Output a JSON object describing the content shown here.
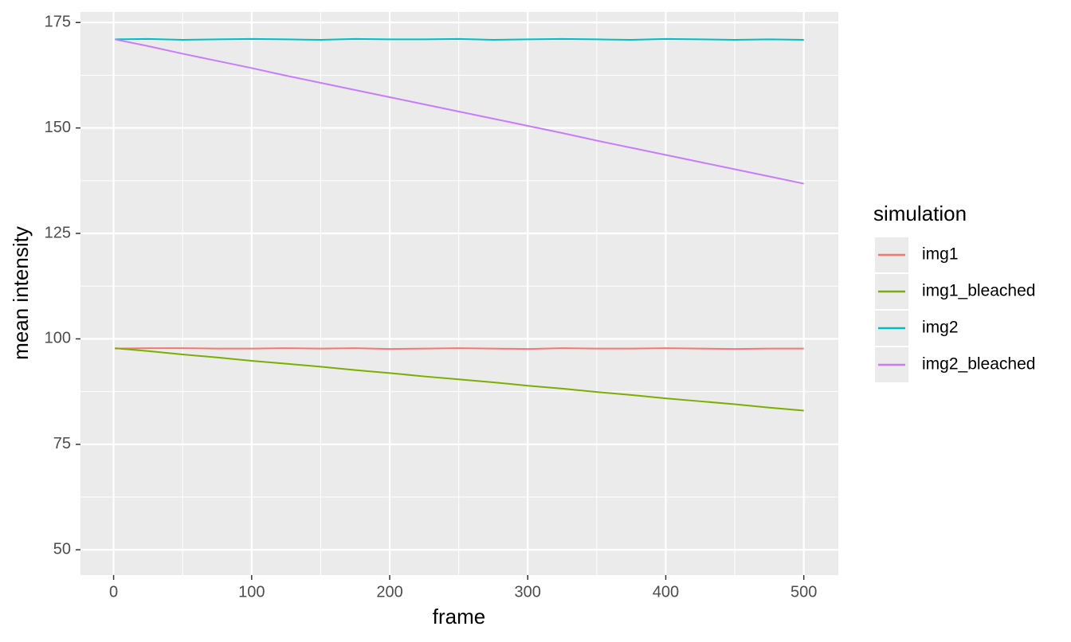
{
  "chart_data": {
    "type": "line",
    "x_label": "frame",
    "y_label": "mean intensity",
    "legend_title": "simulation",
    "x": [
      1,
      25,
      50,
      75,
      100,
      125,
      150,
      175,
      200,
      225,
      250,
      275,
      300,
      325,
      350,
      375,
      400,
      425,
      450,
      475,
      500
    ],
    "series": [
      {
        "name": "img1",
        "color": "#F8766D",
        "values": [
          97.7,
          97.8,
          97.8,
          97.7,
          97.7,
          97.8,
          97.7,
          97.8,
          97.6,
          97.7,
          97.8,
          97.7,
          97.6,
          97.8,
          97.7,
          97.7,
          97.8,
          97.7,
          97.6,
          97.7,
          97.7
        ]
      },
      {
        "name": "img1_bleached",
        "color": "#7CAE00",
        "values": [
          97.8,
          97.1,
          96.3,
          95.6,
          94.8,
          94.1,
          93.4,
          92.6,
          91.9,
          91.1,
          90.4,
          89.7,
          88.9,
          88.2,
          87.4,
          86.7,
          85.9,
          85.2,
          84.5,
          83.7,
          83.0
        ]
      },
      {
        "name": "img2",
        "color": "#00BFC4",
        "values": [
          171.0,
          171.1,
          170.9,
          171.0,
          171.1,
          171.0,
          170.9,
          171.1,
          171.0,
          171.0,
          171.1,
          170.9,
          171.0,
          171.1,
          171.0,
          170.9,
          171.1,
          171.0,
          170.9,
          171.0,
          170.9
        ]
      },
      {
        "name": "img2_bleached",
        "color": "#C77CFF",
        "values": [
          171.0,
          169.4,
          167.6,
          165.9,
          164.2,
          162.4,
          160.7,
          159.0,
          157.3,
          155.6,
          153.9,
          152.2,
          150.5,
          148.8,
          147.0,
          145.3,
          143.6,
          141.9,
          140.2,
          138.5,
          136.8
        ]
      }
    ],
    "xlim": [
      -24,
      525
    ],
    "ylim": [
      44,
      177.5
    ],
    "xticks": [
      0,
      100,
      200,
      300,
      400,
      500
    ],
    "yticks": [
      50,
      75,
      100,
      125,
      150,
      175
    ],
    "xminorticks": [
      50,
      150,
      250,
      350,
      450
    ],
    "yminorticks": [
      62.5,
      87.5,
      112.5,
      137.5,
      162.5
    ],
    "grid": true,
    "legend": "right",
    "panel_color": "#EBEBEB"
  }
}
